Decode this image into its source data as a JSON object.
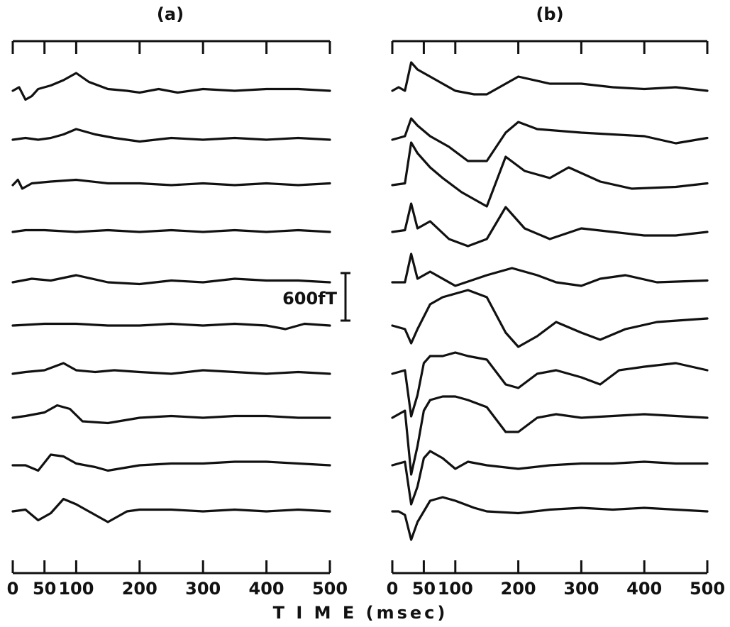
{
  "chart_data": {
    "type": "line",
    "xlabel": "T I M E (msec)",
    "scale_bar_label": "600fT",
    "panels": [
      {
        "title": "(a)",
        "x_ticks": [
          0,
          50,
          100,
          200,
          300,
          400,
          500
        ],
        "x_range": [
          0,
          500
        ],
        "series": [
          {
            "x": [
              0,
              10,
              20,
              30,
              40,
              60,
              80,
              100,
              120,
              150,
              180,
              200,
              230,
              260,
              300,
              350,
              400,
              450,
              500
            ],
            "y": [
              0,
              0.1,
              -0.25,
              -0.15,
              0.05,
              0.15,
              0.3,
              0.5,
              0.25,
              0.05,
              0.0,
              -0.05,
              0.05,
              -0.05,
              0.05,
              0.0,
              0.05,
              0.05,
              0.0
            ]
          },
          {
            "x": [
              0,
              20,
              40,
              60,
              80,
              100,
              130,
              160,
              200,
              250,
              300,
              350,
              400,
              450,
              500
            ],
            "y": [
              0,
              0.05,
              0.0,
              0.05,
              0.15,
              0.3,
              0.15,
              0.05,
              -0.05,
              0.05,
              0.0,
              0.05,
              0.0,
              0.05,
              0.0
            ]
          },
          {
            "x": [
              0,
              8,
              15,
              30,
              60,
              100,
              150,
              200,
              250,
              300,
              350,
              400,
              450,
              500
            ],
            "y": [
              0,
              0.15,
              -0.1,
              0.05,
              0.1,
              0.15,
              0.05,
              0.05,
              0.0,
              0.05,
              0.0,
              0.05,
              0.0,
              0.05
            ]
          },
          {
            "x": [
              0,
              20,
              50,
              100,
              150,
              200,
              250,
              300,
              350,
              400,
              450,
              500
            ],
            "y": [
              0,
              0.05,
              0.05,
              0.0,
              0.05,
              0.0,
              0.05,
              0.0,
              0.05,
              0.0,
              0.05,
              0.0
            ]
          },
          {
            "x": [
              0,
              30,
              60,
              100,
              150,
              200,
              250,
              300,
              350,
              400,
              450,
              500
            ],
            "y": [
              0,
              0.1,
              0.05,
              0.2,
              0.0,
              -0.05,
              0.05,
              0.0,
              0.1,
              0.05,
              0.05,
              0.0
            ]
          },
          {
            "x": [
              0,
              50,
              100,
              150,
              200,
              250,
              300,
              350,
              400,
              430,
              460,
              500
            ],
            "y": [
              0,
              0.05,
              0.05,
              0.0,
              0.0,
              0.05,
              0.0,
              0.05,
              0.0,
              -0.1,
              0.05,
              0.0
            ]
          },
          {
            "x": [
              0,
              20,
              50,
              80,
              100,
              130,
              160,
              200,
              250,
              300,
              350,
              400,
              450,
              500
            ],
            "y": [
              0,
              0.05,
              0.1,
              0.3,
              0.1,
              0.05,
              0.1,
              0.05,
              0.0,
              0.1,
              0.05,
              0.0,
              0.05,
              0.0
            ]
          },
          {
            "x": [
              0,
              20,
              50,
              70,
              90,
              110,
              150,
              200,
              250,
              300,
              350,
              400,
              450,
              500
            ],
            "y": [
              0,
              0.05,
              0.15,
              0.35,
              0.25,
              -0.1,
              -0.15,
              0.0,
              0.05,
              0.0,
              0.05,
              0.05,
              0.0,
              0.0
            ]
          },
          {
            "x": [
              0,
              20,
              40,
              60,
              80,
              100,
              130,
              150,
              200,
              250,
              300,
              350,
              400,
              450,
              500
            ],
            "y": [
              0,
              0.0,
              -0.15,
              0.3,
              0.25,
              0.05,
              -0.05,
              -0.15,
              0.0,
              0.05,
              0.05,
              0.1,
              0.1,
              0.05,
              0.0
            ]
          },
          {
            "x": [
              0,
              20,
              40,
              60,
              80,
              100,
              130,
              150,
              180,
              200,
              250,
              300,
              350,
              400,
              450,
              500
            ],
            "y": [
              0,
              0.05,
              -0.25,
              -0.05,
              0.35,
              0.2,
              -0.1,
              -0.3,
              0.0,
              0.05,
              0.05,
              0.0,
              0.05,
              0.0,
              0.05,
              0.0
            ]
          }
        ]
      },
      {
        "title": "(b)",
        "x_ticks": [
          0,
          50,
          100,
          200,
          300,
          400,
          500
        ],
        "x_range": [
          0,
          500
        ],
        "series": [
          {
            "x": [
              0,
              10,
              20,
              30,
              40,
              60,
              80,
              100,
              130,
              150,
              200,
              250,
              300,
              350,
              400,
              450,
              500
            ],
            "y": [
              0,
              0.1,
              0.0,
              0.8,
              0.6,
              0.4,
              0.2,
              0.0,
              -0.1,
              -0.1,
              0.4,
              0.2,
              0.2,
              0.1,
              0.05,
              0.1,
              0.0
            ]
          },
          {
            "x": [
              0,
              10,
              20,
              30,
              40,
              60,
              90,
              120,
              150,
              180,
              200,
              230,
              300,
              400,
              450,
              500
            ],
            "y": [
              0,
              0.05,
              0.1,
              0.6,
              0.4,
              0.1,
              -0.2,
              -0.6,
              -0.6,
              0.2,
              0.5,
              0.3,
              0.2,
              0.1,
              -0.1,
              0.05
            ]
          },
          {
            "x": [
              0,
              20,
              30,
              40,
              60,
              80,
              110,
              150,
              180,
              210,
              250,
              280,
              330,
              380,
              450,
              500
            ],
            "y": [
              0,
              0.05,
              1.2,
              0.9,
              0.5,
              0.2,
              -0.2,
              -0.6,
              0.8,
              0.4,
              0.2,
              0.5,
              0.1,
              -0.1,
              -0.05,
              0.05
            ]
          },
          {
            "x": [
              0,
              20,
              30,
              40,
              60,
              90,
              120,
              150,
              180,
              210,
              250,
              300,
              350,
              400,
              450,
              500
            ],
            "y": [
              0,
              0.05,
              0.8,
              0.1,
              0.3,
              -0.2,
              -0.4,
              -0.2,
              0.7,
              0.1,
              -0.2,
              0.1,
              0.0,
              -0.1,
              -0.1,
              0.0
            ]
          },
          {
            "x": [
              0,
              20,
              30,
              40,
              60,
              100,
              150,
              190,
              230,
              260,
              300,
              330,
              370,
              420,
              500
            ],
            "y": [
              0,
              0.0,
              0.8,
              0.1,
              0.3,
              -0.1,
              0.2,
              0.4,
              0.2,
              0.0,
              -0.1,
              0.1,
              0.2,
              0.0,
              0.05
            ]
          },
          {
            "x": [
              0,
              20,
              30,
              40,
              60,
              80,
              100,
              120,
              150,
              180,
              200,
              230,
              260,
              300,
              330,
              370,
              420,
              500
            ],
            "y": [
              0,
              -0.1,
              -0.5,
              -0.1,
              0.6,
              0.8,
              0.9,
              1.0,
              0.8,
              -0.2,
              -0.6,
              -0.3,
              0.1,
              -0.2,
              -0.4,
              -0.1,
              0.1,
              0.2
            ]
          },
          {
            "x": [
              0,
              10,
              20,
              30,
              40,
              50,
              60,
              80,
              100,
              120,
              150,
              180,
              200,
              230,
              260,
              300,
              330,
              360,
              400,
              450,
              500
            ],
            "y": [
              0,
              0.05,
              0.1,
              -1.2,
              -0.6,
              0.3,
              0.5,
              0.5,
              0.6,
              0.5,
              0.4,
              -0.3,
              -0.4,
              0.0,
              0.1,
              -0.1,
              -0.3,
              0.1,
              0.2,
              0.3,
              0.1
            ]
          },
          {
            "x": [
              0,
              10,
              20,
              30,
              40,
              50,
              60,
              80,
              100,
              120,
              150,
              180,
              200,
              230,
              260,
              300,
              350,
              400,
              450,
              500
            ],
            "y": [
              0,
              0.1,
              0.2,
              -1.6,
              -0.8,
              0.2,
              0.5,
              0.6,
              0.6,
              0.5,
              0.3,
              -0.4,
              -0.4,
              0.0,
              0.1,
              0.0,
              0.05,
              0.1,
              0.05,
              0.0
            ]
          },
          {
            "x": [
              0,
              10,
              20,
              30,
              40,
              50,
              60,
              80,
              100,
              120,
              150,
              200,
              250,
              300,
              350,
              400,
              450,
              500
            ],
            "y": [
              0,
              0.05,
              0.1,
              -1.1,
              -0.6,
              0.2,
              0.4,
              0.2,
              -0.1,
              0.1,
              0.0,
              -0.1,
              0.0,
              0.05,
              0.05,
              0.1,
              0.05,
              0.05
            ]
          },
          {
            "x": [
              0,
              10,
              20,
              30,
              40,
              60,
              80,
              100,
              130,
              150,
              200,
              250,
              300,
              350,
              400,
              450,
              500
            ],
            "y": [
              0,
              0.0,
              -0.1,
              -0.8,
              -0.3,
              0.3,
              0.4,
              0.3,
              0.1,
              0.0,
              -0.05,
              0.05,
              0.1,
              0.05,
              0.1,
              0.05,
              0.0
            ]
          }
        ]
      }
    ]
  }
}
